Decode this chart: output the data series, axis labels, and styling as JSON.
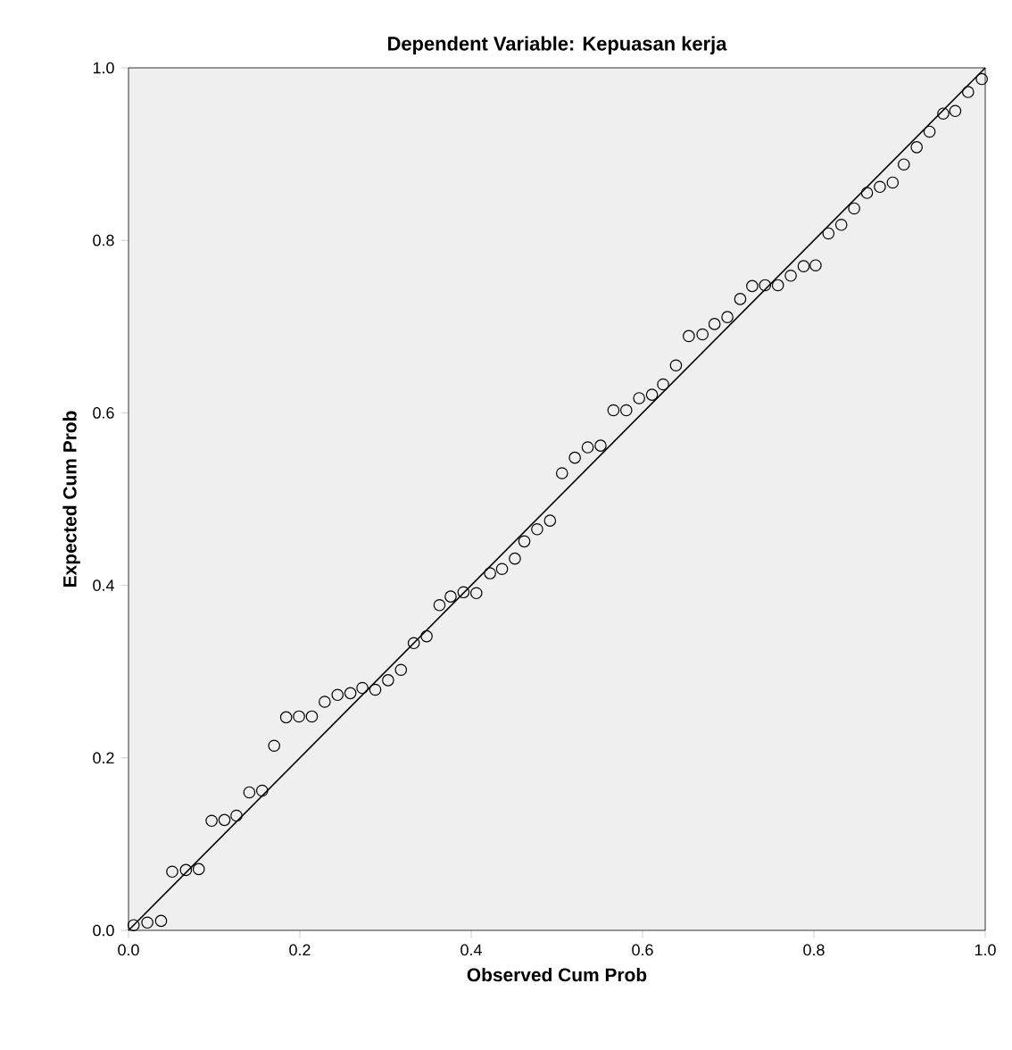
{
  "chart_data": {
    "type": "scatter",
    "title": "Dependent Variable: Kepuasan kerja",
    "xlabel": "Observed Cum Prob",
    "ylabel": "Expected Cum Prob",
    "xlim": [
      0,
      1
    ],
    "ylim": [
      0,
      1
    ],
    "xticks": [
      {
        "value": 0,
        "label": "0.0"
      },
      {
        "value": 0.2,
        "label": "0.2"
      },
      {
        "value": 0.4,
        "label": "0.4"
      },
      {
        "value": 0.6,
        "label": "0.6"
      },
      {
        "value": 0.8,
        "label": "0.8"
      },
      {
        "value": 1,
        "label": "1.0"
      }
    ],
    "yticks": [
      {
        "value": 0,
        "label": "0.0"
      },
      {
        "value": 0.2,
        "label": "0.2"
      },
      {
        "value": 0.4,
        "label": "0.4"
      },
      {
        "value": 0.6,
        "label": "0.6"
      },
      {
        "value": 0.8,
        "label": "0.8"
      },
      {
        "value": 1,
        "label": "1.0"
      }
    ],
    "marker": "circle",
    "series": [
      {
        "color": "#000000",
        "x": [
          0.006,
          0.022,
          0.038,
          0.051,
          0.067,
          0.082,
          0.097,
          0.112,
          0.126,
          0.141,
          0.156,
          0.17,
          0.184,
          0.199,
          0.214,
          0.229,
          0.244,
          0.259,
          0.273,
          0.288,
          0.303,
          0.318,
          0.333,
          0.348,
          0.363,
          0.376,
          0.391,
          0.406,
          0.422,
          0.436,
          0.451,
          0.462,
          0.477,
          0.492,
          0.506,
          0.521,
          0.536,
          0.551,
          0.566,
          0.581,
          0.596,
          0.611,
          0.624,
          0.639,
          0.654,
          0.67,
          0.684,
          0.699,
          0.714,
          0.728,
          0.743,
          0.758,
          0.773,
          0.788,
          0.802,
          0.817,
          0.832,
          0.847,
          0.862,
          0.877,
          0.892,
          0.905,
          0.92,
          0.935,
          0.951,
          0.965,
          0.98,
          0.996
        ],
        "values": [
          0.006,
          0.009,
          0.011,
          0.068,
          0.07,
          0.071,
          0.127,
          0.128,
          0.133,
          0.16,
          0.162,
          0.214,
          0.247,
          0.248,
          0.248,
          0.265,
          0.273,
          0.275,
          0.281,
          0.279,
          0.29,
          0.302,
          0.333,
          0.341,
          0.377,
          0.387,
          0.392,
          0.391,
          0.414,
          0.419,
          0.431,
          0.451,
          0.465,
          0.475,
          0.53,
          0.548,
          0.56,
          0.562,
          0.603,
          0.603,
          0.617,
          0.621,
          0.633,
          0.655,
          0.689,
          0.691,
          0.703,
          0.711,
          0.732,
          0.747,
          0.748,
          0.748,
          0.759,
          0.77,
          0.771,
          0.808,
          0.818,
          0.837,
          0.855,
          0.862,
          0.867,
          0.888,
          0.908,
          0.926,
          0.947,
          0.95,
          0.972,
          0.987
        ]
      },
      {
        "type": "line",
        "color": "#000000",
        "marker": "none",
        "line_style": "solid",
        "x": [
          0,
          1
        ],
        "values": [
          0,
          1
        ]
      }
    ]
  }
}
